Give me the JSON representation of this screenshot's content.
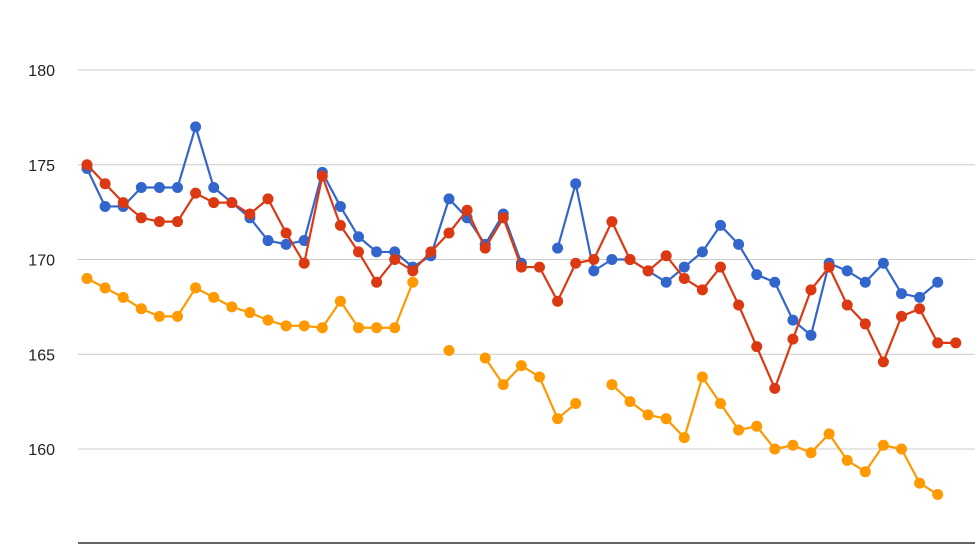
{
  "chart_data": {
    "type": "line",
    "title": "",
    "xlabel": "",
    "ylabel": "",
    "ylim": [
      156,
      182
    ],
    "yticks": [
      160,
      165,
      170,
      175,
      180
    ],
    "grid": true,
    "legend": "none",
    "point_count": 51,
    "series": [
      {
        "color": "#3366cc",
        "values": [
          174.8,
          172.8,
          172.8,
          173.8,
          173.8,
          173.8,
          177.0,
          173.8,
          173.0,
          172.2,
          171.0,
          170.8,
          171.0,
          174.6,
          172.8,
          171.2,
          170.4,
          170.4,
          169.6,
          170.2,
          173.2,
          172.2,
          170.8,
          172.4,
          169.8,
          null,
          170.6,
          174.0,
          169.4,
          170.0,
          170.0,
          169.4,
          168.8,
          169.6,
          170.4,
          171.8,
          170.8,
          169.2,
          168.8,
          166.8,
          166.0,
          169.8,
          169.4,
          168.8,
          169.8,
          168.2,
          168.0,
          168.8,
          null,
          null,
          null
        ]
      },
      {
        "color": "#dc3912",
        "values": [
          175.0,
          174.0,
          173.0,
          172.2,
          172.0,
          172.0,
          173.5,
          173.0,
          173.0,
          172.4,
          173.2,
          171.4,
          169.8,
          174.4,
          171.8,
          170.4,
          168.8,
          170.0,
          169.4,
          170.4,
          171.4,
          172.6,
          170.6,
          172.2,
          169.6,
          169.6,
          167.8,
          169.8,
          170.0,
          172.0,
          170.0,
          169.4,
          170.2,
          169.0,
          168.4,
          169.6,
          167.6,
          165.4,
          163.2,
          165.8,
          168.4,
          169.6,
          167.6,
          166.6,
          164.6,
          167.0,
          167.4,
          165.6,
          165.6,
          null,
          null
        ]
      },
      {
        "color": "#ff9900",
        "values": [
          169.0,
          168.5,
          168.0,
          167.4,
          167.0,
          167.0,
          168.5,
          168.0,
          167.5,
          167.2,
          166.8,
          166.5,
          166.5,
          166.4,
          167.8,
          166.4,
          166.4,
          166.4,
          168.8,
          null,
          165.2,
          null,
          164.8,
          163.4,
          164.4,
          163.8,
          161.6,
          162.4,
          null,
          163.4,
          162.5,
          161.8,
          161.6,
          160.6,
          163.8,
          162.4,
          161.0,
          161.2,
          160.0,
          160.2,
          159.8,
          160.8,
          159.4,
          158.8,
          160.2,
          160.0,
          158.2,
          157.6,
          null,
          null,
          null
        ]
      }
    ]
  }
}
